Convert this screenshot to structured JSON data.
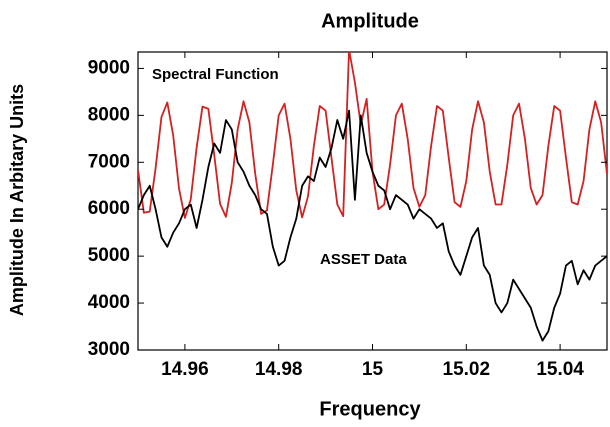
{
  "chart_data": {
    "type": "line",
    "title": "Amplitude",
    "x_label": "Frequency",
    "y_label": "Amplitude In Arbitary Units",
    "annotations": [
      "Spectral Function",
      "ASSET Data"
    ],
    "xlim": [
      14.95,
      15.05
    ],
    "xticks": [
      14.96,
      14.98,
      15,
      15.02,
      15.04
    ],
    "ylim": [
      3000,
      9350
    ],
    "yticks": [
      3000,
      4000,
      5000,
      6000,
      7000,
      8000,
      9000
    ],
    "grid": false,
    "x": [
      14.95,
      14.95125,
      14.9525,
      14.95375,
      14.955,
      14.95625,
      14.9575,
      14.95875,
      14.96,
      14.96125,
      14.9625,
      14.96375,
      14.965,
      14.96625,
      14.9675,
      14.96875,
      14.97,
      14.97125,
      14.9725,
      14.97375,
      14.975,
      14.97625,
      14.9775,
      14.97875,
      14.98,
      14.98125,
      14.9825,
      14.98375,
      14.985,
      14.98625,
      14.9875,
      14.98875,
      14.99,
      14.99125,
      14.9925,
      14.99375,
      14.995,
      14.99625,
      14.9975,
      14.99875,
      15,
      15.00125,
      15.0025,
      15.00375,
      15.005,
      15.00625,
      15.0075,
      15.00875,
      15.01,
      15.01125,
      15.0125,
      15.01375,
      15.015,
      15.01625,
      15.0175,
      15.01875,
      15.02,
      15.02125,
      15.0225,
      15.02375,
      15.025,
      15.02625,
      15.0275,
      15.02875,
      15.03,
      15.03125,
      15.0325,
      15.03375,
      15.035,
      15.03625,
      15.0375,
      15.03875,
      15.04,
      15.04125,
      15.0425,
      15.04375,
      15.045,
      15.04625,
      15.0475,
      15.04875,
      15.05
    ],
    "series": [
      {
        "name": "Spectral Function",
        "color": "#d42020",
        "values": [
          6838,
          5925,
          5950,
          6875,
          7963,
          8275,
          7575,
          6438,
          5813,
          6213,
          7313,
          8188,
          8138,
          7163,
          6113,
          5838,
          6563,
          7700,
          8300,
          7850,
          6750,
          5900,
          5975,
          6950,
          8000,
          8250,
          7500,
          6400,
          5825,
          6275,
          7350,
          8200,
          8100,
          7100,
          6100,
          5850,
          9400,
          8700,
          7800,
          8350,
          6800,
          6000,
          6100,
          6950,
          8000,
          8250,
          7500,
          6450,
          6050,
          6300,
          7350,
          8200,
          8100,
          7100,
          6150,
          6050,
          6600,
          7700,
          8300,
          7850,
          6800,
          6100,
          6100,
          6950,
          8000,
          8250,
          7500,
          6450,
          6100,
          6300,
          7350,
          8200,
          8100,
          7100,
          6150,
          6100,
          6600,
          7700,
          8300,
          7850,
          6750
        ]
      },
      {
        "name": "ASSET Data",
        "color": "#000000",
        "values": [
          6000,
          6300,
          6500,
          6000,
          5400,
          5200,
          5500,
          5700,
          6000,
          6100,
          5600,
          6200,
          6900,
          7400,
          7200,
          7900,
          7700,
          7000,
          6800,
          6500,
          6300,
          6000,
          5900,
          5200,
          4800,
          4900,
          5400,
          5800,
          6500,
          6700,
          6600,
          7100,
          6900,
          7300,
          7900,
          7500,
          8100,
          6200,
          8000,
          7200,
          6800,
          6500,
          6400,
          6000,
          6300,
          6200,
          6100,
          5800,
          6000,
          5900,
          5800,
          5600,
          5700,
          5100,
          4800,
          4600,
          5000,
          5400,
          5600,
          4800,
          4600,
          4000,
          3800,
          4000,
          4500,
          4300,
          4100,
          3900,
          3500,
          3200,
          3400,
          3900,
          4200,
          4800,
          4900,
          4400,
          4700,
          4500,
          4800,
          4900,
          5000
        ]
      }
    ]
  }
}
